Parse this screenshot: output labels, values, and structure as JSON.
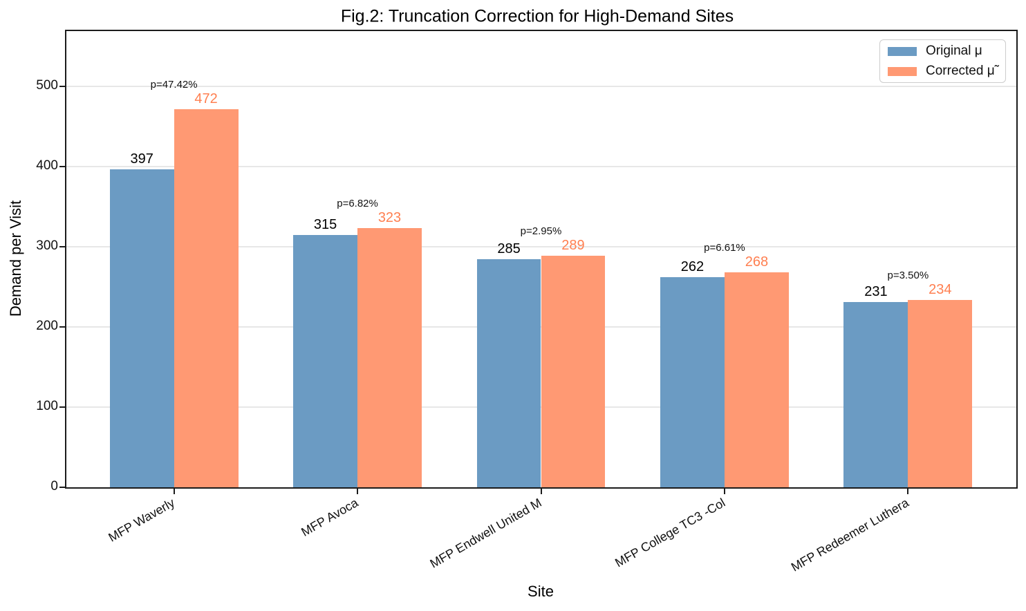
{
  "chart_data": {
    "type": "bar",
    "title": "Fig.2: Truncation Correction for High-Demand Sites",
    "xlabel": "Site",
    "ylabel": "Demand per Visit",
    "categories": [
      "MFP Waverly",
      "MFP Avoca",
      "MFP Endwell United M",
      "MFP College TC3 -Col",
      "MFP Redeemer Luthera"
    ],
    "series": [
      {
        "name": "Original μ",
        "values": [
          397,
          315,
          285,
          262,
          231
        ],
        "color": "#6B9BC3",
        "value_label_color": "#000000"
      },
      {
        "name": "Corrected μ̃",
        "values": [
          472,
          323,
          289,
          268,
          234
        ],
        "color": "#FF9973",
        "value_label_color": "#FF7F50"
      }
    ],
    "annotations": [
      "p=47.42%",
      "p=6.82%",
      "p=2.95%",
      "p=6.61%",
      "p=3.50%"
    ],
    "yticks": [
      0,
      100,
      200,
      300,
      400,
      500
    ],
    "ylim": [
      0,
      570
    ],
    "grid": "horizontal",
    "legend_position": "upper-right",
    "colors": {
      "grid": "#e7e7e7",
      "spine": "#1b1b1b",
      "background": "#ffffff"
    }
  }
}
